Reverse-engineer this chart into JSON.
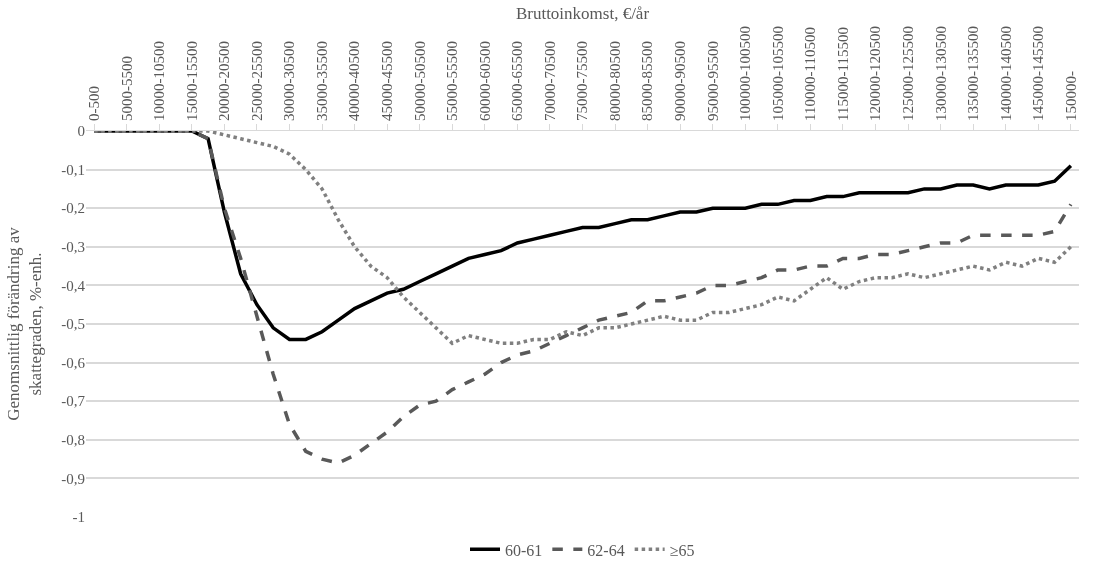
{
  "chart_data": {
    "type": "line",
    "xlabel": "Bruttoinkomst, €/år",
    "ylabel": "Genomsnittlig förändring av\nskattegraden, %-enh.",
    "categories": [
      "0-500",
      null,
      "5000-5500",
      null,
      "10000-10500",
      null,
      "15000-15500",
      null,
      "20000-20500",
      null,
      "25000-25500",
      null,
      "30000-30500",
      null,
      "35000-35500",
      null,
      "40000-40500",
      null,
      "45000-45500",
      null,
      "50000-50500",
      null,
      "55000-55500",
      null,
      "60000-60500",
      null,
      "65000-65500",
      null,
      "70000-70500",
      null,
      "75000-75500",
      null,
      "80000-80500",
      null,
      "85000-85500",
      null,
      "90000-90500",
      null,
      "95000-95500",
      null,
      "100000-100500",
      null,
      "105000-105500",
      null,
      "110000-110500",
      null,
      "115000-115500",
      null,
      "120000-120500",
      null,
      "125000-125500",
      null,
      "130000-130500",
      null,
      "135000-135500",
      null,
      "140000-140500",
      null,
      "145000-145500",
      null,
      "150000-"
    ],
    "series": [
      {
        "name": "60-61",
        "color": "#000000",
        "line_style": "solid",
        "values": [
          0,
          0,
          0,
          0,
          0,
          0,
          0,
          -0.02,
          -0.21,
          -0.37,
          -0.45,
          -0.51,
          -0.54,
          -0.54,
          -0.52,
          -0.49,
          -0.46,
          -0.44,
          -0.42,
          -0.41,
          -0.39,
          -0.37,
          -0.35,
          -0.33,
          -0.32,
          -0.31,
          -0.29,
          -0.28,
          -0.27,
          -0.26,
          -0.25,
          -0.25,
          -0.24,
          -0.23,
          -0.23,
          -0.22,
          -0.21,
          -0.21,
          -0.2,
          -0.2,
          -0.2,
          -0.19,
          -0.19,
          -0.18,
          -0.18,
          -0.17,
          -0.17,
          -0.16,
          -0.16,
          -0.16,
          -0.16,
          -0.15,
          -0.15,
          -0.14,
          -0.14,
          -0.15,
          -0.14,
          -0.14,
          -0.14,
          -0.13,
          -0.09
        ]
      },
      {
        "name": "62-64",
        "color": "#595959",
        "line_style": "dashed",
        "values": [
          0,
          0,
          0,
          0,
          0,
          0,
          0,
          -0.02,
          -0.2,
          -0.33,
          -0.48,
          -0.63,
          -0.76,
          -0.83,
          -0.85,
          -0.86,
          -0.84,
          -0.81,
          -0.78,
          -0.74,
          -0.71,
          -0.7,
          -0.67,
          -0.65,
          -0.63,
          -0.6,
          -0.58,
          -0.57,
          -0.55,
          -0.53,
          -0.51,
          -0.49,
          -0.48,
          -0.47,
          -0.44,
          -0.44,
          -0.43,
          -0.42,
          -0.4,
          -0.4,
          -0.39,
          -0.38,
          -0.36,
          -0.36,
          -0.35,
          -0.35,
          -0.33,
          -0.33,
          -0.32,
          -0.32,
          -0.31,
          -0.3,
          -0.29,
          -0.29,
          -0.27,
          -0.27,
          -0.27,
          -0.27,
          -0.27,
          -0.26,
          -0.19
        ]
      },
      {
        "name": "≥65",
        "color": "#808080",
        "line_style": "dotted",
        "values": [
          0,
          0,
          0,
          0,
          0,
          0,
          0,
          0,
          -0.01,
          -0.02,
          -0.03,
          -0.04,
          -0.06,
          -0.1,
          -0.15,
          -0.23,
          -0.3,
          -0.35,
          -0.38,
          -0.43,
          -0.47,
          -0.51,
          -0.55,
          -0.53,
          -0.54,
          -0.55,
          -0.55,
          -0.54,
          -0.54,
          -0.52,
          -0.53,
          -0.51,
          -0.51,
          -0.5,
          -0.49,
          -0.48,
          -0.49,
          -0.49,
          -0.47,
          -0.47,
          -0.46,
          -0.45,
          -0.43,
          -0.44,
          -0.41,
          -0.38,
          -0.41,
          -0.39,
          -0.38,
          -0.38,
          -0.37,
          -0.38,
          -0.37,
          -0.36,
          -0.35,
          -0.36,
          -0.34,
          -0.35,
          -0.33,
          -0.34,
          -0.3
        ]
      }
    ],
    "ylim": [
      -1,
      0
    ],
    "yticks": [
      0,
      {
        "value": -0.1,
        "label": "-0,1"
      },
      {
        "value": -0.2,
        "label": "-0,2"
      },
      {
        "value": -0.3,
        "label": "-0,3"
      },
      {
        "value": -0.4,
        "label": "-0,4"
      },
      {
        "value": -0.5,
        "label": "-0,5"
      },
      {
        "value": -0.6,
        "label": "-0,6"
      },
      {
        "value": -0.7,
        "label": "-0,7"
      },
      {
        "value": -0.8,
        "label": "-0,8"
      },
      {
        "value": -0.9,
        "label": "-0,9"
      },
      -1
    ],
    "grid": "y",
    "legend": "bottom",
    "marker": "none"
  }
}
